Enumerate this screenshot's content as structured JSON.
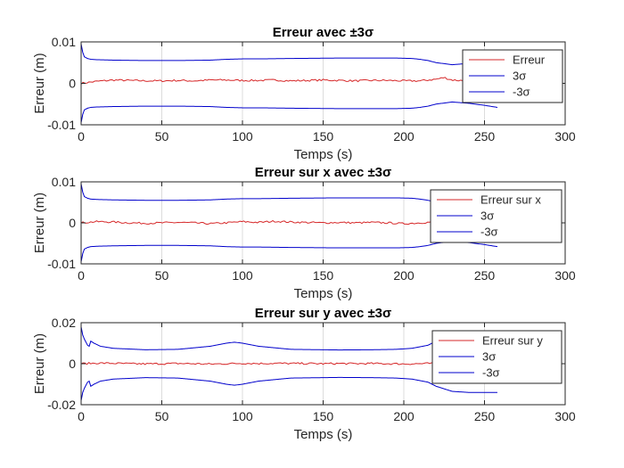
{
  "figure": {
    "background": "#ffffff"
  },
  "chart_data": [
    {
      "type": "line",
      "title": "Erreur avec ±3σ",
      "xlabel": "Temps (s)",
      "ylabel": "Erreur (m)",
      "xlim": [
        0,
        300
      ],
      "ylim": [
        -0.01,
        0.01
      ],
      "xticks": [
        0,
        50,
        100,
        150,
        200,
        250,
        300
      ],
      "xticklabels": [
        "0",
        "50",
        "100",
        "150",
        "200",
        "250",
        "300"
      ],
      "yticks": [
        -0.01,
        0,
        0.01
      ],
      "yticklabels": [
        "-0.01",
        "0",
        "0.01"
      ],
      "grid": "x",
      "legend_position": "top-right",
      "series": [
        {
          "name": "Erreur",
          "color": "#d62728",
          "noise": true,
          "x": [
            0,
            10,
            20,
            30,
            40,
            50,
            60,
            70,
            80,
            90,
            100,
            110,
            120,
            130,
            140,
            150,
            160,
            170,
            180,
            190,
            200,
            210,
            220,
            225,
            230,
            240,
            250,
            258
          ],
          "values": [
            0.0,
            0.0005,
            0.0008,
            0.0007,
            0.0006,
            0.0006,
            0.0007,
            0.0006,
            0.0008,
            0.0008,
            0.0007,
            0.0007,
            0.0008,
            0.0006,
            0.0007,
            0.0008,
            0.0007,
            0.0006,
            0.0007,
            0.0007,
            0.0006,
            0.0006,
            0.001,
            0.0014,
            0.0008,
            0.0006,
            0.0005,
            0.0005
          ]
        },
        {
          "name": "3σ",
          "color": "#0000cc",
          "x": [
            0,
            1,
            2,
            4,
            6,
            10,
            20,
            40,
            60,
            80,
            90,
            100,
            110,
            130,
            160,
            180,
            195,
            205,
            210,
            215,
            220,
            230,
            240,
            250,
            258
          ],
          "values": [
            0.0095,
            0.0075,
            0.0064,
            0.006,
            0.0058,
            0.0057,
            0.0056,
            0.0055,
            0.0055,
            0.0056,
            0.0058,
            0.0059,
            0.0059,
            0.006,
            0.0061,
            0.0061,
            0.0061,
            0.006,
            0.0058,
            0.0055,
            0.005,
            0.0045,
            0.0048,
            0.0053,
            0.0058
          ]
        },
        {
          "name": "-3σ",
          "color": "#0000cc",
          "x": [
            0,
            1,
            2,
            4,
            6,
            10,
            20,
            40,
            60,
            80,
            90,
            100,
            110,
            130,
            160,
            180,
            195,
            205,
            210,
            215,
            220,
            230,
            240,
            250,
            258
          ],
          "values": [
            -0.0095,
            -0.0075,
            -0.0064,
            -0.006,
            -0.0058,
            -0.0057,
            -0.0056,
            -0.0055,
            -0.0055,
            -0.0056,
            -0.0058,
            -0.0059,
            -0.0059,
            -0.006,
            -0.0061,
            -0.0061,
            -0.0061,
            -0.006,
            -0.0058,
            -0.0055,
            -0.005,
            -0.0045,
            -0.0048,
            -0.0053,
            -0.0058
          ]
        }
      ]
    },
    {
      "type": "line",
      "title": "Erreur sur x avec ±3σ",
      "xlabel": "Temps (s)",
      "ylabel": "Erreur (m)",
      "xlim": [
        0,
        300
      ],
      "ylim": [
        -0.01,
        0.01
      ],
      "xticks": [
        0,
        50,
        100,
        150,
        200,
        250,
        300
      ],
      "xticklabels": [
        "0",
        "50",
        "100",
        "150",
        "200",
        "250",
        "300"
      ],
      "yticks": [
        -0.01,
        0,
        0.01
      ],
      "yticklabels": [
        "-0.01",
        "0",
        "0.01"
      ],
      "grid": "x",
      "legend_position": "top-right",
      "series": [
        {
          "name": "Erreur sur x",
          "color": "#d62728",
          "noise": true,
          "x": [
            0,
            10,
            20,
            30,
            40,
            50,
            60,
            70,
            80,
            90,
            100,
            110,
            120,
            130,
            140,
            150,
            160,
            170,
            180,
            190,
            200,
            210,
            220,
            230,
            240,
            250,
            258
          ],
          "values": [
            0.0,
            0.0003,
            0.0002,
            0.0,
            -0.0001,
            0.0,
            0.0001,
            0.0,
            -0.0002,
            0.0,
            0.0003,
            0.0001,
            0.0004,
            0.0002,
            0.0001,
            0.0,
            0.0001,
            0.0,
            0.0001,
            0.0,
            -0.0002,
            0.0,
            0.0003,
            0.0001,
            0.0,
            0.0001,
            0.0
          ]
        },
        {
          "name": "3σ",
          "color": "#0000cc",
          "x": [
            0,
            1,
            2,
            4,
            6,
            10,
            20,
            40,
            60,
            80,
            90,
            100,
            110,
            130,
            160,
            180,
            195,
            205,
            210,
            215,
            220,
            230,
            240,
            250,
            258
          ],
          "values": [
            0.0095,
            0.0075,
            0.0064,
            0.006,
            0.0058,
            0.0057,
            0.0056,
            0.0055,
            0.0055,
            0.0056,
            0.0058,
            0.0059,
            0.0059,
            0.006,
            0.0061,
            0.0061,
            0.0061,
            0.006,
            0.0058,
            0.0055,
            0.005,
            0.0045,
            0.0048,
            0.0053,
            0.0058
          ]
        },
        {
          "name": "-3σ",
          "color": "#0000cc",
          "x": [
            0,
            1,
            2,
            4,
            6,
            10,
            20,
            40,
            60,
            80,
            90,
            100,
            110,
            130,
            160,
            180,
            195,
            205,
            210,
            215,
            220,
            230,
            240,
            250,
            258
          ],
          "values": [
            -0.0095,
            -0.0075,
            -0.0064,
            -0.006,
            -0.0058,
            -0.0057,
            -0.0056,
            -0.0055,
            -0.0055,
            -0.0056,
            -0.0058,
            -0.0059,
            -0.0059,
            -0.006,
            -0.0061,
            -0.0061,
            -0.0061,
            -0.006,
            -0.0058,
            -0.0055,
            -0.005,
            -0.0045,
            -0.0048,
            -0.0053,
            -0.0058
          ]
        }
      ]
    },
    {
      "type": "line",
      "title": "Erreur sur y avec ±3σ",
      "xlabel": "Temps (s)",
      "ylabel": "Erreur (m)",
      "xlim": [
        0,
        300
      ],
      "ylim": [
        -0.02,
        0.02
      ],
      "xticks": [
        0,
        50,
        100,
        150,
        200,
        250,
        300
      ],
      "xticklabels": [
        "0",
        "50",
        "100",
        "150",
        "200",
        "250",
        "300"
      ],
      "yticks": [
        -0.02,
        0,
        0.02
      ],
      "yticklabels": [
        "-0.02",
        "0",
        "0.02"
      ],
      "grid": "x",
      "legend_position": "top-right",
      "series": [
        {
          "name": "Erreur sur y",
          "color": "#d62728",
          "noise": true,
          "x": [
            0,
            10,
            20,
            30,
            40,
            50,
            60,
            70,
            80,
            90,
            100,
            110,
            120,
            130,
            140,
            150,
            160,
            170,
            180,
            190,
            200,
            210,
            220,
            230,
            240,
            250,
            258
          ],
          "values": [
            0.0,
            0.0003,
            0.0002,
            0.0,
            -0.0001,
            0.0,
            0.0001,
            0.0,
            -0.0002,
            0.0,
            0.0002,
            0.0001,
            0.0002,
            0.0001,
            0.0001,
            0.0,
            0.0001,
            0.0,
            0.0001,
            0.0,
            -0.0001,
            0.0,
            0.0002,
            0.0001,
            0.0,
            0.0001,
            0.0
          ]
        },
        {
          "name": "3σ",
          "color": "#0000cc",
          "x": [
            0,
            1,
            2,
            4,
            5,
            6,
            8,
            12,
            20,
            40,
            60,
            80,
            90,
            95,
            100,
            110,
            130,
            160,
            180,
            195,
            205,
            215,
            220,
            230,
            240,
            250,
            258
          ],
          "values": [
            0.018,
            0.014,
            0.012,
            0.009,
            0.0085,
            0.011,
            0.01,
            0.0085,
            0.0075,
            0.0068,
            0.007,
            0.0085,
            0.01,
            0.0105,
            0.01,
            0.0085,
            0.007,
            0.0067,
            0.0068,
            0.007,
            0.0075,
            0.009,
            0.011,
            0.0135,
            0.014,
            0.014,
            0.014
          ]
        },
        {
          "name": "-3σ",
          "color": "#0000cc",
          "x": [
            0,
            1,
            2,
            4,
            5,
            6,
            8,
            12,
            20,
            40,
            60,
            80,
            90,
            95,
            100,
            110,
            130,
            160,
            180,
            195,
            205,
            215,
            220,
            230,
            240,
            250,
            258
          ],
          "values": [
            -0.018,
            -0.014,
            -0.012,
            -0.009,
            -0.0085,
            -0.011,
            -0.01,
            -0.0085,
            -0.0075,
            -0.0068,
            -0.007,
            -0.0085,
            -0.01,
            -0.0105,
            -0.01,
            -0.0085,
            -0.007,
            -0.0067,
            -0.0068,
            -0.007,
            -0.0075,
            -0.009,
            -0.011,
            -0.0135,
            -0.014,
            -0.014,
            -0.014
          ]
        }
      ]
    }
  ]
}
